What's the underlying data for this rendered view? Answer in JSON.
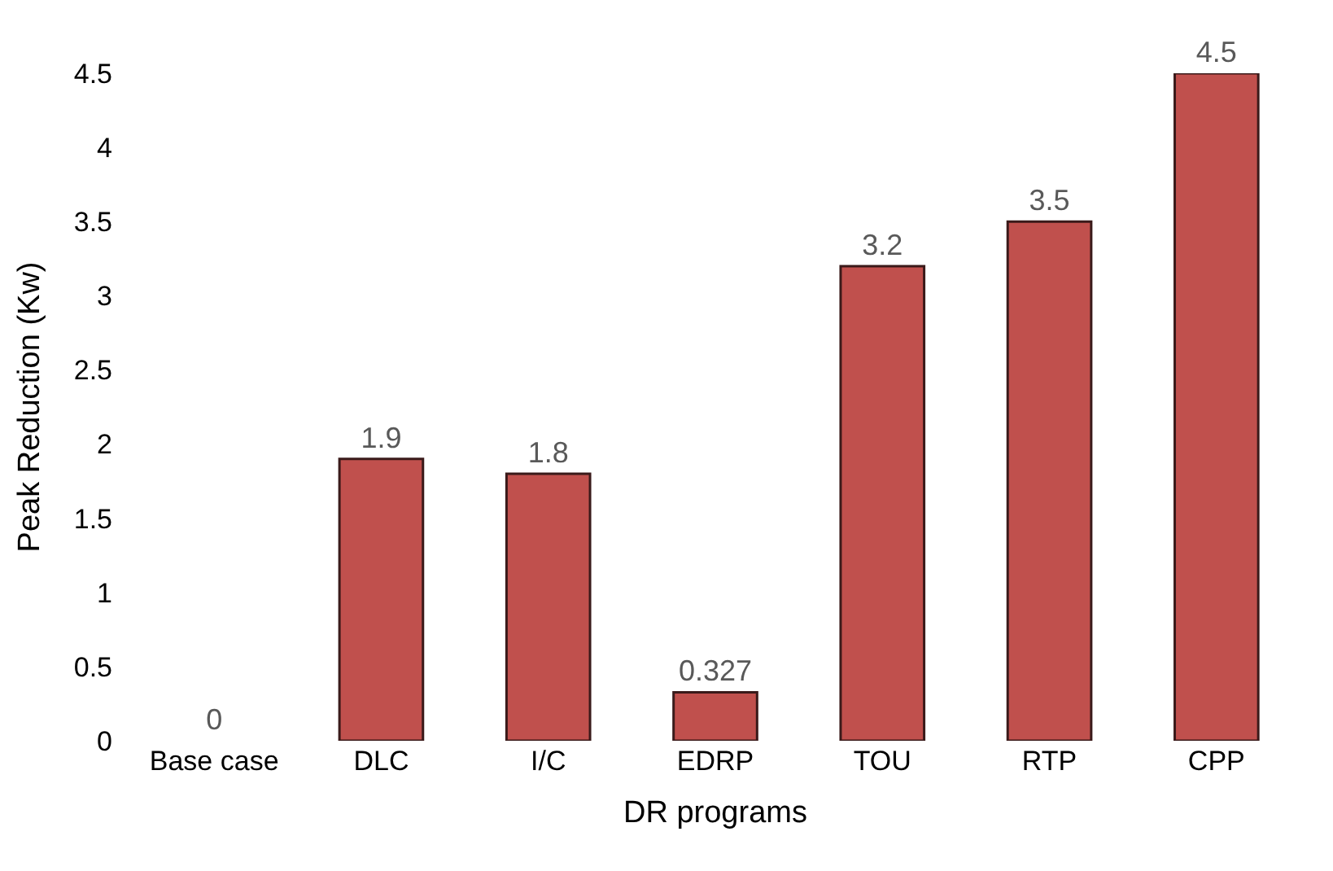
{
  "chart_data": {
    "type": "bar",
    "xlabel": "DR programs",
    "ylabel": "Peak Reduction (Kw)",
    "categories": [
      "Base case",
      "DLC",
      "I/C",
      "EDRP",
      "TOU",
      "RTP",
      "CPP"
    ],
    "values": [
      0,
      1.9,
      1.8,
      0.327,
      3.2,
      3.5,
      4.5
    ],
    "color": "#c0504d",
    "ylim": [
      0,
      4.5
    ],
    "yticks": [
      0,
      0.5,
      1,
      1.5,
      2,
      2.5,
      3,
      3.5,
      4,
      4.5
    ],
    "data_labels": true
  }
}
